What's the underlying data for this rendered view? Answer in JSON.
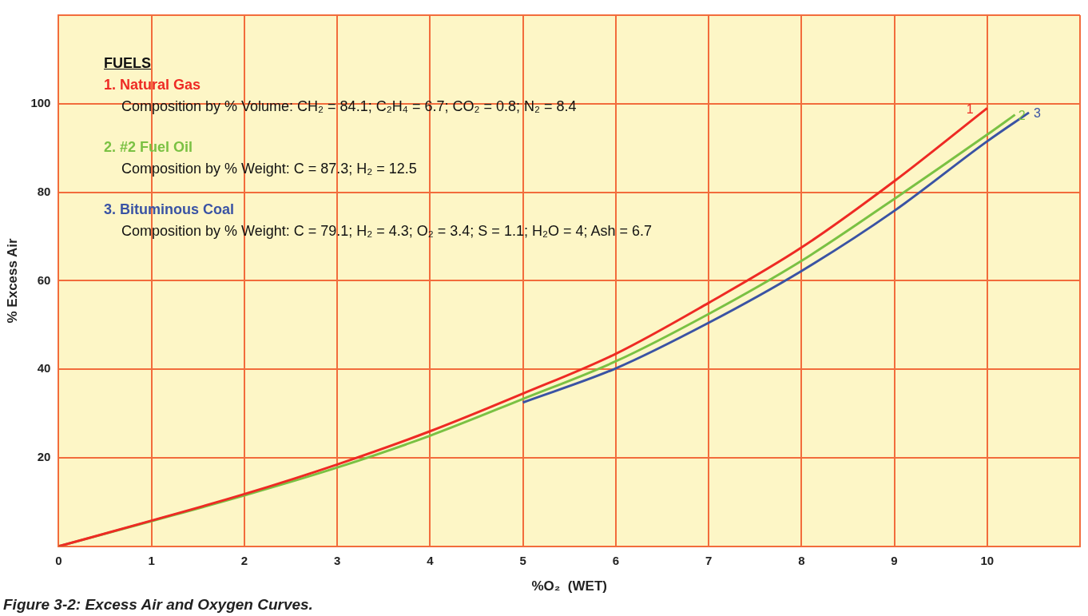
{
  "chart_data": {
    "type": "line",
    "title": "Figure 3-2: Excess Air and Oxygen Curves.",
    "xlabel": "%O₂  (WET)",
    "ylabel": "% Excess Air",
    "xlim": [
      0,
      11
    ],
    "xticks": [
      0,
      1,
      2,
      3,
      4,
      5,
      6,
      7,
      8,
      9,
      10,
      {
        "value": 11,
        "label": null
      }
    ],
    "ylim": [
      0,
      120
    ],
    "yticks": [
      {
        "value": 0,
        "label": null
      },
      20,
      40,
      60,
      80,
      100,
      {
        "value": 120,
        "label": null
      }
    ],
    "grid": true,
    "legend": "top left",
    "marker": "none",
    "line_style": "solid",
    "legend_title": "FUELS",
    "series": [
      {
        "name": "1. Natural Gas",
        "color": "#ee2a24",
        "x": [
          0,
          1,
          2,
          3,
          4,
          5,
          6,
          7,
          8,
          9,
          10
        ],
        "values": [
          0,
          5.8,
          11.8,
          18.5,
          26,
          34.5,
          43.5,
          55,
          67.5,
          82.5,
          99
        ]
      },
      {
        "name": "2. #2 Fuel Oil",
        "color": "#7ac143",
        "x": [
          0,
          1,
          2,
          3,
          4,
          5,
          6,
          7,
          8,
          9,
          10,
          10.3
        ],
        "values": [
          0,
          5.7,
          11.5,
          17.8,
          25,
          33.3,
          41.8,
          52.5,
          64.5,
          78.5,
          93,
          97.5
        ]
      },
      {
        "name": "3. Bituminous Coal",
        "color": "#3a53a4",
        "x": [
          5,
          6,
          7,
          8,
          9,
          10,
          10.45
        ],
        "values": [
          32.5,
          40.2,
          50.5,
          62.2,
          75.8,
          91.5,
          98
        ]
      }
    ],
    "annotations": [
      "Composition by % Volume: CH₂ = 84.1; C₂H₄ = 6.7; CO₂ = 0.8; N₂ = 8.4",
      "Composition by % Weight: C = 87.3; H₂ = 12.5",
      "Composition by % Weight: C = 79.1; H₂ = 4.3; O₂ = 3.4; S = 1.1; H₂O = 4; Ash = 6.7",
      "1",
      "2",
      "3"
    ]
  }
}
